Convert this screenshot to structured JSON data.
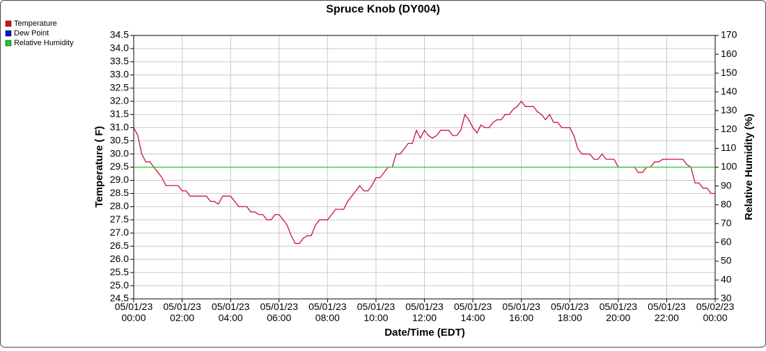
{
  "chart_data": {
    "type": "line",
    "title": "Spruce Knob (DY004)",
    "xlabel": "Date/Time (EDT)",
    "ylabel": "Temperature ( F)",
    "y2label": "Relative Humidity (%)",
    "xlim": [
      0,
      24
    ],
    "xticks": [
      {
        "value": 0,
        "label": "05/01/23\n00:00"
      },
      {
        "value": 2,
        "label": "05/01/23\n02:00"
      },
      {
        "value": 4,
        "label": "05/01/23\n04:00"
      },
      {
        "value": 6,
        "label": "05/01/23\n06:00"
      },
      {
        "value": 8,
        "label": "05/01/23\n08:00"
      },
      {
        "value": 10,
        "label": "05/01/23\n10:00"
      },
      {
        "value": 12,
        "label": "05/01/23\n12:00"
      },
      {
        "value": 14,
        "label": "05/01/23\n14:00"
      },
      {
        "value": 16,
        "label": "05/01/23\n16:00"
      },
      {
        "value": 18,
        "label": "05/01/23\n18:00"
      },
      {
        "value": 20,
        "label": "05/01/23\n20:00"
      },
      {
        "value": 22,
        "label": "05/01/23\n22:00"
      },
      {
        "value": 24,
        "label": "05/02/23\n00:00"
      }
    ],
    "ylim": [
      24.5,
      34.5
    ],
    "yticks": [
      24.5,
      {
        "value": 25,
        "label": "25.0"
      },
      25.5,
      {
        "value": 26,
        "label": "26.0"
      },
      26.5,
      {
        "value": 27,
        "label": "27.0"
      },
      27.5,
      {
        "value": 28,
        "label": "28.0"
      },
      28.5,
      {
        "value": 29,
        "label": "29.0"
      },
      29.5,
      {
        "value": 30,
        "label": "30.0"
      },
      30.5,
      {
        "value": 31,
        "label": "31.0"
      },
      31.5,
      {
        "value": 32,
        "label": "32.0"
      },
      32.5,
      {
        "value": 33,
        "label": "33.0"
      },
      33.5,
      {
        "value": 34,
        "label": "34.0"
      },
      34.5
    ],
    "y2lim": [
      30,
      170
    ],
    "y2ticks": [
      30,
      40,
      50,
      60,
      70,
      80,
      90,
      100,
      110,
      120,
      130,
      140,
      150,
      160,
      170
    ],
    "grid": true,
    "legend": "top-left",
    "series": [
      {
        "name": "Temperature",
        "color": "#c8103c",
        "legend_color": "#e01010",
        "x": [
          0,
          0.17,
          0.33,
          0.5,
          0.67,
          0.83,
          1,
          1.17,
          1.33,
          1.83,
          2,
          2.17,
          2.33,
          3,
          3.17,
          3.33,
          3.5,
          3.67,
          4,
          4.17,
          4.33,
          4.67,
          4.83,
          5,
          5.17,
          5.33,
          5.5,
          5.67,
          5.83,
          6,
          6.17,
          6.33,
          6.5,
          6.67,
          6.83,
          7,
          7.17,
          7.33,
          7.5,
          7.67,
          8,
          8.17,
          8.33,
          8.67,
          8.83,
          9,
          9.17,
          9.33,
          9.5,
          9.67,
          9.83,
          10,
          10.17,
          10.33,
          10.5,
          10.67,
          10.83,
          11,
          11.17,
          11.33,
          11.5,
          11.67,
          11.83,
          12,
          12.17,
          12.33,
          12.5,
          12.67,
          13,
          13.17,
          13.33,
          13.5,
          13.67,
          13.83,
          14,
          14.17,
          14.33,
          14.5,
          14.67,
          14.83,
          15,
          15.17,
          15.33,
          15.5,
          15.67,
          15.83,
          16,
          16.17,
          16.5,
          16.67,
          16.83,
          17,
          17.17,
          17.33,
          17.5,
          17.67,
          18,
          18.17,
          18.33,
          18.5,
          18.83,
          19,
          19.17,
          19.33,
          19.5,
          19.83,
          20,
          20.5,
          20.67,
          20.83,
          21,
          21.17,
          21.33,
          21.5,
          21.67,
          21.83,
          22.5,
          22.67,
          22.83,
          23,
          23.17,
          23.33,
          23.5,
          23.67,
          23.83,
          24
        ],
        "values": [
          31.0,
          30.7,
          30.0,
          29.7,
          29.7,
          29.5,
          29.3,
          29.1,
          28.8,
          28.8,
          28.6,
          28.6,
          28.4,
          28.4,
          28.2,
          28.2,
          28.1,
          28.4,
          28.4,
          28.2,
          28.0,
          28.0,
          27.8,
          27.8,
          27.7,
          27.7,
          27.5,
          27.5,
          27.7,
          27.7,
          27.5,
          27.3,
          26.9,
          26.6,
          26.6,
          26.8,
          26.9,
          26.9,
          27.3,
          27.5,
          27.5,
          27.7,
          27.9,
          27.9,
          28.2,
          28.4,
          28.6,
          28.8,
          28.6,
          28.6,
          28.8,
          29.1,
          29.1,
          29.3,
          29.5,
          29.5,
          30.0,
          30.0,
          30.2,
          30.4,
          30.4,
          30.9,
          30.6,
          30.9,
          30.7,
          30.6,
          30.7,
          30.9,
          30.9,
          30.7,
          30.7,
          30.9,
          31.5,
          31.3,
          31.0,
          30.8,
          31.1,
          31.0,
          31.0,
          31.2,
          31.3,
          31.3,
          31.5,
          31.5,
          31.7,
          31.8,
          32.0,
          31.8,
          31.8,
          31.6,
          31.5,
          31.3,
          31.5,
          31.2,
          31.2,
          31.0,
          31.0,
          30.7,
          30.2,
          30.0,
          30.0,
          29.8,
          29.8,
          30.0,
          29.8,
          29.8,
          29.5,
          29.5,
          29.5,
          29.3,
          29.3,
          29.5,
          29.5,
          29.7,
          29.7,
          29.8,
          29.8,
          29.8,
          29.6,
          29.5,
          28.9,
          28.9,
          28.7,
          28.7,
          28.5,
          28.5
        ]
      },
      {
        "name": "Dew Point",
        "color": "#1010d0"
      },
      {
        "name": "Relative Humidity",
        "color": "#22cc22",
        "axis": "y2",
        "x": [
          0,
          24
        ],
        "values": [
          100,
          100
        ]
      }
    ]
  }
}
